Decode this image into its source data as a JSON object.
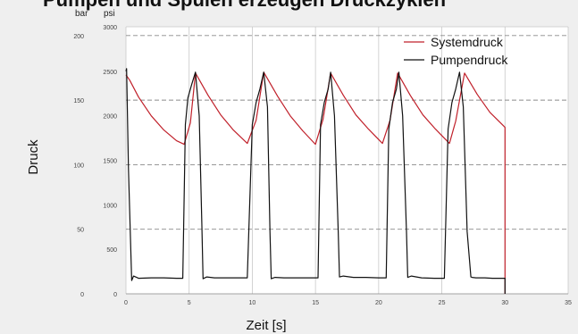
{
  "page": {
    "title": "Pumpen und Spulen erzeugen Druckzyklen"
  },
  "chart_data": {
    "type": "line",
    "xlabel": "Zeit [s]",
    "ylabel": "Druck",
    "y_unit_left": "bar",
    "y_unit_right": "psi",
    "xlim": [
      0,
      35
    ],
    "x_ticks": [
      "0",
      "5",
      "10",
      "15",
      "20",
      "25",
      "30",
      "35"
    ],
    "psi_lim": [
      0,
      3000
    ],
    "psi_ticks": [
      "0",
      "500",
      "1000",
      "1500",
      "2000",
      "2500",
      "3000"
    ],
    "bar_lim": [
      0,
      206.8
    ],
    "bar_ticks": [
      "0",
      "50",
      "100",
      "150",
      "200"
    ],
    "grid": {
      "vertical": true,
      "horizontal_dashed_at_bar": [
        0,
        50,
        100,
        150,
        200
      ]
    },
    "legend_position": "top-right",
    "colors": {
      "system": "#c0202a",
      "pump": "#111111",
      "grid": "#c8c8c8",
      "dashed": "#8a8a8a"
    },
    "series": [
      {
        "name": "Systemdruck",
        "color": "#c0202a",
        "x": [
          0.0,
          0.3,
          1.0,
          2.0,
          3.0,
          4.0,
          4.6,
          5.1,
          5.5,
          6.5,
          7.5,
          8.5,
          9.6,
          10.3,
          10.9,
          12.0,
          13.0,
          14.0,
          15.0,
          15.6,
          16.2,
          17.2,
          18.2,
          19.2,
          20.3,
          20.9,
          21.5,
          22.5,
          23.5,
          24.5,
          25.6,
          26.1,
          26.8,
          27.8,
          28.8,
          30.0,
          30.0
        ],
        "y": [
          2460,
          2400,
          2210,
          2000,
          1840,
          1720,
          1680,
          1920,
          2480,
          2230,
          2010,
          1840,
          1690,
          1950,
          2490,
          2220,
          2000,
          1830,
          1680,
          1960,
          2480,
          2230,
          2010,
          1850,
          1690,
          1950,
          2480,
          2230,
          2010,
          1850,
          1690,
          1940,
          2480,
          2240,
          2040,
          1870,
          0
        ]
      },
      {
        "name": "Pumpendruck",
        "color": "#111111",
        "x": [
          0.0,
          0.05,
          0.2,
          0.45,
          0.6,
          1.0,
          2.0,
          3.0,
          4.0,
          4.5,
          4.7,
          4.9,
          5.2,
          5.5,
          5.8,
          6.0,
          6.1,
          6.4,
          7.0,
          8.0,
          9.0,
          9.6,
          10.0,
          10.3,
          10.6,
          10.9,
          11.2,
          11.4,
          11.5,
          11.8,
          12.5,
          13.5,
          14.5,
          15.2,
          15.4,
          15.7,
          16.0,
          16.2,
          16.5,
          16.8,
          16.9,
          17.2,
          18.0,
          19.0,
          20.0,
          20.6,
          20.8,
          21.1,
          21.4,
          21.6,
          21.9,
          22.2,
          22.3,
          22.6,
          23.4,
          24.4,
          25.2,
          25.5,
          25.8,
          26.1,
          26.4,
          26.7,
          27.0,
          27.3,
          27.4,
          27.7,
          28.4,
          29.0,
          29.6,
          29.9,
          30.0,
          30.0
        ],
        "y": [
          2500,
          2530,
          1400,
          150,
          200,
          175,
          180,
          180,
          175,
          175,
          1900,
          2200,
          2350,
          2490,
          2000,
          800,
          170,
          190,
          180,
          180,
          180,
          180,
          1900,
          2150,
          2300,
          2490,
          2100,
          700,
          170,
          185,
          180,
          180,
          180,
          180,
          1900,
          2150,
          2300,
          2490,
          2000,
          700,
          190,
          200,
          185,
          185,
          180,
          180,
          1850,
          2150,
          2300,
          2490,
          2000,
          700,
          185,
          200,
          180,
          175,
          175,
          1850,
          2150,
          2300,
          2490,
          2100,
          700,
          190,
          185,
          180,
          180,
          175,
          175,
          175,
          175,
          0
        ]
      }
    ]
  }
}
